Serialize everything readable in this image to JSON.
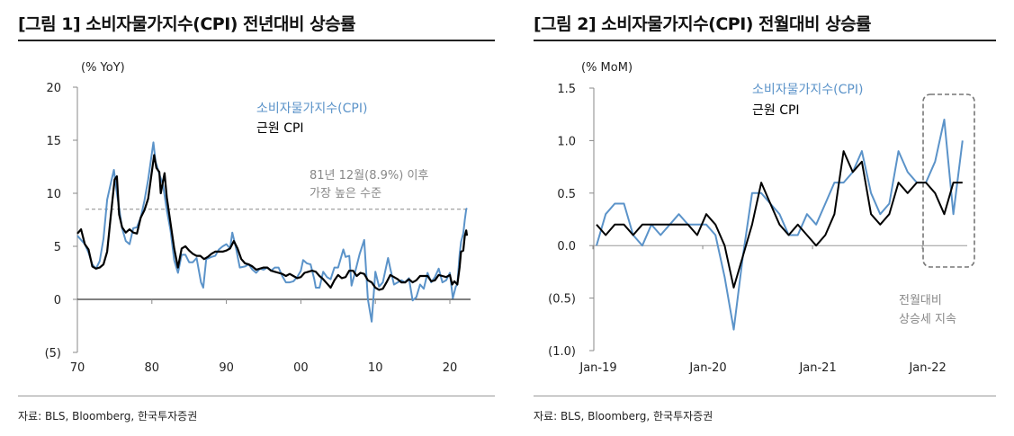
{
  "colors": {
    "cpi": "#5b93c9",
    "core": "#000000",
    "annotation": "#888888"
  },
  "chart_data": [
    {
      "type": "line",
      "title": "[그림 1] 소비자물가지수(CPI) 전년대비 상승률",
      "unit_label": "(% YoY)",
      "ylim": [
        -5,
        20
      ],
      "y_ticks": [
        "20",
        "15",
        "10",
        "5",
        "0",
        "(5)"
      ],
      "y_tick_values": [
        20,
        15,
        10,
        5,
        0,
        -5
      ],
      "xlim": [
        1970,
        2023
      ],
      "x_ticks": [
        "70",
        "80",
        "90",
        "00",
        "10",
        "20"
      ],
      "x_tick_values": [
        1970,
        1980,
        1990,
        2000,
        2010,
        2020
      ],
      "source": "자료: BLS, Bloomberg, 한국투자증권",
      "annotation": {
        "line1": "81년 12월(8.9%) 이후",
        "line2": "가장 높은 수준",
        "reference_value": 8.5
      },
      "series": [
        {
          "name": "소비자물가지수(CPI)",
          "x": [
            1970,
            1970.5,
            1971,
            1971.5,
            1972,
            1972.5,
            1973,
            1973.5,
            1974,
            1974.5,
            1974.9,
            1975.3,
            1975.6,
            1976,
            1976.5,
            1977,
            1977.5,
            1978,
            1978.5,
            1979,
            1979.5,
            1980.2,
            1980.5,
            1981,
            1981.5,
            1982,
            1982.5,
            1983,
            1983.5,
            1984,
            1984.5,
            1985,
            1985.5,
            1986,
            1986.6,
            1986.9,
            1987.3,
            1988,
            1988.5,
            1989,
            1989.5,
            1990,
            1990.5,
            1990.8,
            1991.3,
            1991.8,
            1992.5,
            1993,
            1993.5,
            1994,
            1994.5,
            1995,
            1995.5,
            1996,
            1996.5,
            1997,
            1997.5,
            1998,
            1998.5,
            1999,
            1999.5,
            2000,
            2000.3,
            2000.8,
            2001.3,
            2001.8,
            2002,
            2002.5,
            2003,
            2003.5,
            2004,
            2004.5,
            2005,
            2005.7,
            2006,
            2006.5,
            2006.8,
            2007.3,
            2007.9,
            2008.5,
            2009,
            2009.5,
            2010,
            2010.5,
            2011,
            2011.7,
            2012,
            2012.5,
            2013,
            2013.5,
            2014,
            2014.5,
            2015,
            2015.5,
            2016,
            2016.5,
            2017,
            2017.5,
            2018,
            2018.5,
            2019,
            2019.5,
            2020,
            2020.4,
            2020.8,
            2021,
            2021.3,
            2021.5,
            2021.8,
            2022,
            2022.2,
            2022.3
          ],
          "y": [
            6.0,
            5.6,
            5.2,
            4.4,
            3.3,
            2.9,
            3.6,
            5.7,
            9.4,
            11.0,
            12.2,
            10.0,
            8.6,
            6.7,
            5.5,
            5.2,
            6.7,
            6.8,
            7.7,
            9.3,
            11.3,
            14.8,
            13.0,
            11.8,
            10.8,
            8.4,
            6.5,
            3.7,
            2.5,
            4.2,
            4.2,
            3.5,
            3.5,
            3.9,
            1.6,
            1.1,
            3.8,
            4.0,
            4.1,
            4.7,
            5.0,
            5.2,
            4.8,
            6.3,
            4.8,
            3.0,
            3.1,
            3.3,
            2.8,
            2.5,
            2.9,
            2.8,
            3.0,
            2.7,
            3.0,
            3.0,
            2.2,
            1.6,
            1.6,
            1.7,
            2.1,
            2.7,
            3.7,
            3.4,
            3.3,
            1.9,
            1.1,
            1.1,
            2.6,
            2.1,
            1.9,
            3.0,
            3.0,
            4.7,
            4.0,
            4.1,
            1.3,
            2.6,
            4.3,
            5.6,
            0.0,
            -2.1,
            2.6,
            1.2,
            1.6,
            3.9,
            2.9,
            1.4,
            1.6,
            1.8,
            1.6,
            2.0,
            -0.1,
            0.2,
            1.4,
            1.0,
            2.5,
            1.6,
            2.1,
            2.9,
            1.6,
            1.8,
            2.5,
            0.1,
            1.2,
            1.4,
            4.2,
            5.4,
            6.2,
            7.5,
            8.5,
            8.6
          ]
        },
        {
          "name": "근원 CPI",
          "x": [
            1970,
            1970.5,
            1971,
            1971.5,
            1972,
            1972.5,
            1973,
            1973.5,
            1974,
            1974.5,
            1975,
            1975.3,
            1975.6,
            1976,
            1976.5,
            1977,
            1977.5,
            1978,
            1978.5,
            1979,
            1979.5,
            1980.3,
            1980.6,
            1981,
            1981.2,
            1981.7,
            1982,
            1982.5,
            1983,
            1983.5,
            1984,
            1984.5,
            1985,
            1985.5,
            1986,
            1986.5,
            1987,
            1987.5,
            1988,
            1988.5,
            1989,
            1989.5,
            1990,
            1990.5,
            1991,
            1991.5,
            1992,
            1992.5,
            1993,
            1993.5,
            1994,
            1994.5,
            1995,
            1995.5,
            1996,
            1996.5,
            1997,
            1997.5,
            1998,
            1998.5,
            1999,
            1999.5,
            2000,
            2000.5,
            2001,
            2001.5,
            2002,
            2002.5,
            2003,
            2003.5,
            2004,
            2004.5,
            2005,
            2005.5,
            2006,
            2006.5,
            2007,
            2007.5,
            2008,
            2008.5,
            2009,
            2009.5,
            2010,
            2010.5,
            2011,
            2011.5,
            2012,
            2012.5,
            2013,
            2013.5,
            2014,
            2014.5,
            2015,
            2015.5,
            2016,
            2016.5,
            2017,
            2017.5,
            2018,
            2018.5,
            2019,
            2019.5,
            2020,
            2020.3,
            2020.6,
            2021,
            2021.3,
            2021.5,
            2021.8,
            2022,
            2022.2,
            2022.3
          ],
          "y": [
            6.2,
            6.6,
            5.2,
            4.7,
            3.1,
            2.9,
            3.0,
            3.3,
            4.5,
            8.0,
            11.3,
            11.6,
            8.0,
            6.8,
            6.3,
            6.6,
            6.3,
            6.2,
            7.7,
            8.4,
            9.5,
            13.6,
            12.4,
            12.0,
            10.0,
            11.9,
            9.6,
            7.2,
            4.8,
            3.0,
            4.8,
            5.0,
            4.6,
            4.3,
            4.1,
            4.1,
            3.8,
            4.0,
            4.3,
            4.5,
            4.5,
            4.5,
            4.6,
            4.8,
            5.5,
            4.8,
            3.8,
            3.4,
            3.3,
            3.1,
            2.8,
            2.9,
            3.0,
            3.0,
            2.7,
            2.6,
            2.5,
            2.4,
            2.2,
            2.4,
            2.2,
            2.0,
            2.1,
            2.5,
            2.6,
            2.7,
            2.6,
            2.2,
            1.9,
            1.5,
            1.1,
            1.8,
            2.3,
            2.0,
            2.1,
            2.7,
            2.7,
            2.2,
            2.5,
            2.4,
            1.8,
            1.6,
            1.1,
            0.9,
            1.0,
            1.6,
            2.3,
            2.1,
            1.9,
            1.6,
            1.6,
            1.9,
            1.6,
            1.8,
            2.2,
            2.2,
            2.2,
            1.7,
            1.8,
            2.3,
            2.2,
            2.1,
            2.3,
            1.4,
            1.7,
            1.4,
            3.0,
            4.5,
            4.6,
            6.0,
            6.5,
            6.0
          ]
        }
      ]
    },
    {
      "type": "line",
      "title": "[그림 2] 소비자물가지수(CPI) 전월대비 상승률",
      "unit_label": "(% MoM)",
      "ylim": [
        -1.0,
        1.5
      ],
      "y_ticks": [
        "1.5",
        "1.0",
        "0.5",
        "0.0",
        "(0.5)",
        "(1.0)"
      ],
      "y_tick_values": [
        1.5,
        1.0,
        0.5,
        0.0,
        -0.5,
        -1.0
      ],
      "x_ticks": [
        "Jan-19",
        "Jan-20",
        "Jan-21",
        "Jan-22"
      ],
      "x_tick_index": [
        0,
        12,
        24,
        36
      ],
      "months_shown": "Jan-19 to May-22",
      "source": "자료: BLS, Bloomberg, 한국투자증권",
      "annotation": {
        "line1": "전월대비",
        "line2": "상승세 지속"
      },
      "series": [
        {
          "name": "소비자물가지수(CPI)",
          "values": [
            0.0,
            0.3,
            0.4,
            0.4,
            0.1,
            0.0,
            0.2,
            0.1,
            0.2,
            0.3,
            0.2,
            0.2,
            0.2,
            0.1,
            -0.3,
            -0.8,
            -0.1,
            0.5,
            0.5,
            0.4,
            0.3,
            0.1,
            0.1,
            0.3,
            0.2,
            0.4,
            0.6,
            0.6,
            0.7,
            0.9,
            0.5,
            0.3,
            0.4,
            0.9,
            0.7,
            0.6,
            0.6,
            0.8,
            1.2,
            0.3,
            1.0
          ]
        },
        {
          "name": "근원 CPI",
          "values": [
            0.2,
            0.1,
            0.2,
            0.2,
            0.1,
            0.2,
            0.2,
            0.2,
            0.2,
            0.2,
            0.2,
            0.1,
            0.3,
            0.2,
            0.0,
            -0.4,
            -0.1,
            0.2,
            0.6,
            0.4,
            0.2,
            0.1,
            0.2,
            0.1,
            0.0,
            0.1,
            0.3,
            0.9,
            0.7,
            0.8,
            0.3,
            0.2,
            0.3,
            0.6,
            0.5,
            0.6,
            0.6,
            0.5,
            0.3,
            0.6,
            0.6
          ]
        }
      ]
    }
  ]
}
